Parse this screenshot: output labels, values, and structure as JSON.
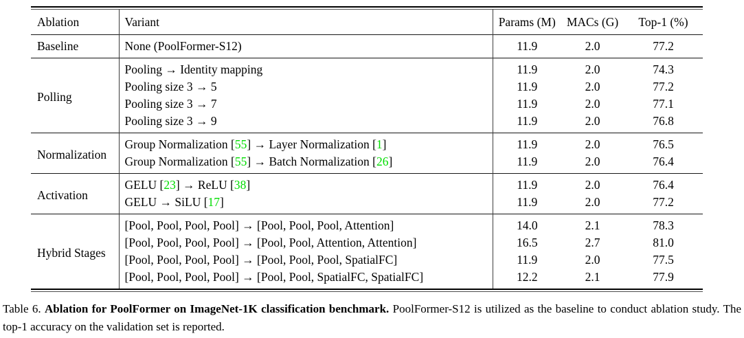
{
  "colors": {
    "citation_green": "#00dd00",
    "text": "#000000",
    "rule": "#000000"
  },
  "table": {
    "headers": {
      "ablation": "Ablation",
      "variant": "Variant",
      "params": "Params (M)",
      "macs": "MACs (G)",
      "top1": "Top-1 (%)"
    },
    "sections": [
      {
        "ablation": "Baseline",
        "rows": [
          {
            "variant": "None (PoolFormer-S12)",
            "params": "11.9",
            "macs": "2.0",
            "top1": "77.2"
          }
        ]
      },
      {
        "ablation": "Polling",
        "rows": [
          {
            "variant": "Pooling → Identity mapping",
            "params": "11.9",
            "macs": "2.0",
            "top1": "74.3"
          },
          {
            "variant": "Pooling size 3 → 5",
            "params": "11.9",
            "macs": "2.0",
            "top1": "77.2"
          },
          {
            "variant": "Pooling size 3 → 7",
            "params": "11.9",
            "macs": "2.0",
            "top1": "77.1"
          },
          {
            "variant": "Pooling size 3 → 9",
            "params": "11.9",
            "macs": "2.0",
            "top1": "76.8"
          }
        ]
      },
      {
        "ablation": "Normalization",
        "rows": [
          {
            "variant": "Group Normalization [55] → Layer Normalization [1]",
            "params": "11.9",
            "macs": "2.0",
            "top1": "76.5"
          },
          {
            "variant": "Group Normalization [55] → Batch Normalization [26]",
            "params": "11.9",
            "macs": "2.0",
            "top1": "76.4"
          }
        ]
      },
      {
        "ablation": "Activation",
        "rows": [
          {
            "variant": "GELU [23] → ReLU [38]",
            "params": "11.9",
            "macs": "2.0",
            "top1": "76.4"
          },
          {
            "variant": "GELU → SiLU [17]",
            "params": "11.9",
            "macs": "2.0",
            "top1": "77.2"
          }
        ]
      },
      {
        "ablation": "Hybrid Stages",
        "rows": [
          {
            "variant": "[Pool, Pool, Pool, Pool] → [Pool, Pool, Pool, Attention]",
            "params": "14.0",
            "macs": "2.1",
            "top1": "78.3"
          },
          {
            "variant": "[Pool, Pool, Pool, Pool] → [Pool, Pool, Attention, Attention]",
            "params": "16.5",
            "macs": "2.7",
            "top1": "81.0"
          },
          {
            "variant": "[Pool, Pool, Pool, Pool] → [Pool, Pool, Pool, SpatialFC]",
            "params": "11.9",
            "macs": "2.0",
            "top1": "77.5"
          },
          {
            "variant": "[Pool, Pool, Pool, Pool] → [Pool, Pool, SpatialFC, SpatialFC]",
            "params": "12.2",
            "macs": "2.1",
            "top1": "77.9"
          }
        ]
      }
    ]
  },
  "caption": {
    "label": "Table 6.",
    "bold": "Ablation for PoolFormer on ImageNet-1K classification benchmark.",
    "text": "PoolFormer-S12 is utilized as the baseline to conduct ablation study. The top-1 accuracy on the validation set is reported."
  }
}
